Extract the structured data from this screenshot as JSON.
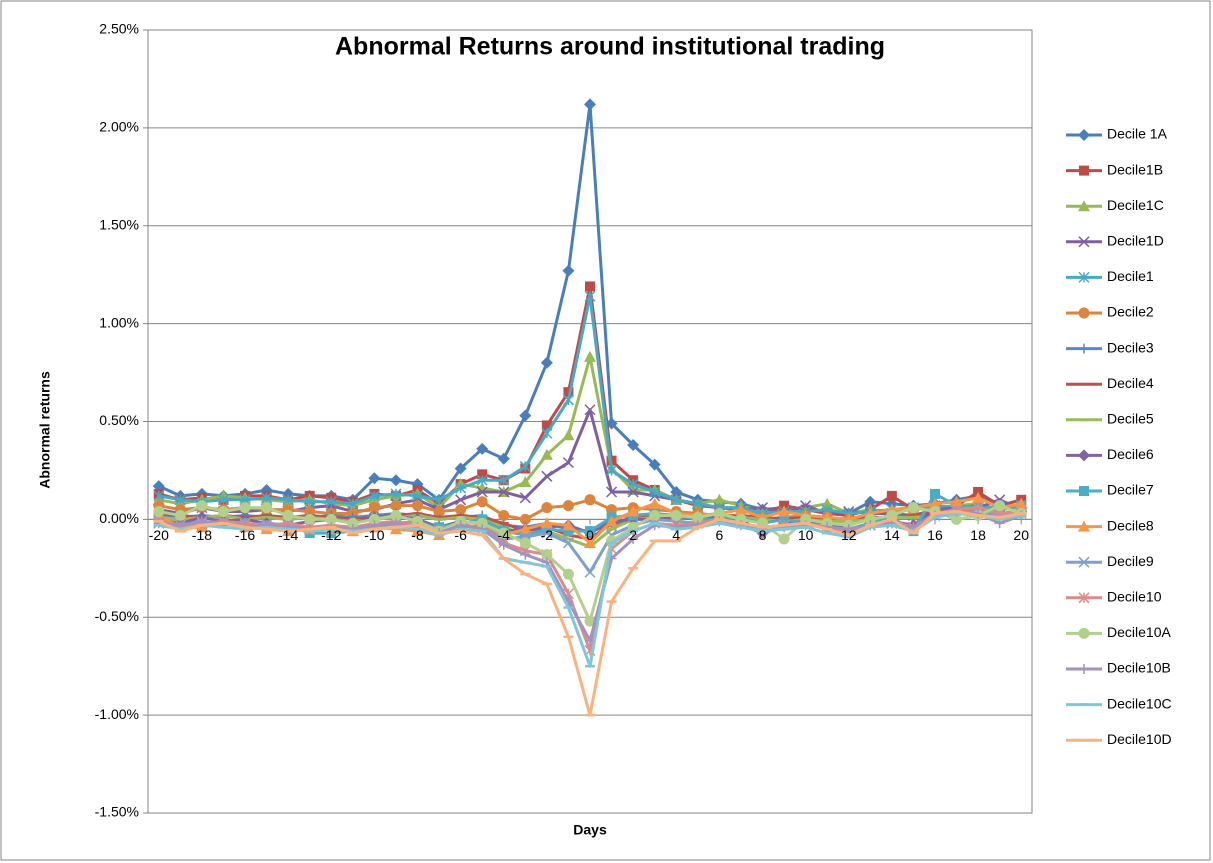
{
  "chart_data": {
    "type": "line",
    "title": "Abnormal Returns around institutional trading",
    "x_label": "Days",
    "y_label": "Abnormal returns",
    "x": [
      -20,
      -19,
      -18,
      -17,
      -16,
      -15,
      -14,
      -13,
      -12,
      -11,
      -10,
      -9,
      -8,
      -7,
      -6,
      -5,
      -4,
      -3,
      -2,
      -1,
      0,
      1,
      2,
      3,
      4,
      5,
      6,
      7,
      8,
      9,
      10,
      11,
      12,
      13,
      14,
      15,
      16,
      17,
      18,
      19,
      20
    ],
    "xlim": [
      -20.5,
      20.5
    ],
    "xticks": [
      -20,
      -18,
      -16,
      -14,
      -12,
      -10,
      -8,
      -6,
      -4,
      -2,
      0,
      2,
      4,
      6,
      8,
      10,
      12,
      14,
      16,
      18,
      20
    ],
    "ylim": [
      -1.5,
      2.5
    ],
    "yticks": [
      {
        "value": -1.5,
        "label": "-1.50%"
      },
      {
        "value": -1.0,
        "label": "-1.00%"
      },
      {
        "value": -0.5,
        "label": "-0.50%"
      },
      {
        "value": 0,
        "label": "0.00%"
      },
      {
        "value": 0.5,
        "label": "0.50%"
      },
      {
        "value": 1.0,
        "label": "1.00%"
      },
      {
        "value": 1.5,
        "label": "1.50%"
      },
      {
        "value": 2.0,
        "label": "2.00%"
      },
      {
        "value": 2.5,
        "label": "2.50%"
      }
    ],
    "grid": true,
    "legend": "right",
    "series": [
      {
        "name": "Decile 1A",
        "color": "#4A7EBB",
        "marker": "diamond",
        "values": [
          0.17,
          0.12,
          0.13,
          0.12,
          0.13,
          0.15,
          0.13,
          0.12,
          0.12,
          0.1,
          0.21,
          0.2,
          0.18,
          0.1,
          0.26,
          0.36,
          0.31,
          0.53,
          0.8,
          1.27,
          2.12,
          0.49,
          0.38,
          0.28,
          0.14,
          0.1,
          0.09,
          0.08,
          0.05,
          0.06,
          0.05,
          0.04,
          0.03,
          0.09,
          0.08,
          0.07,
          0.08,
          0.1,
          0.12,
          0.08,
          0.06
        ]
      },
      {
        "name": "Decile1B",
        "color": "#BE4B48",
        "marker": "square",
        "values": [
          0.13,
          0.1,
          0.11,
          0.1,
          0.12,
          0.12,
          0.1,
          0.12,
          0.11,
          0.09,
          0.13,
          0.12,
          0.15,
          0.08,
          0.18,
          0.23,
          0.2,
          0.26,
          0.48,
          0.65,
          1.19,
          0.3,
          0.2,
          0.15,
          0.1,
          0.07,
          0.06,
          0.05,
          0.03,
          0.07,
          0.05,
          0.03,
          0.02,
          0.05,
          0.12,
          0.05,
          0.06,
          0.07,
          0.14,
          0.07,
          0.1
        ]
      },
      {
        "name": "Decile1C",
        "color": "#98B954",
        "marker": "triangle",
        "values": [
          0.1,
          0.08,
          0.1,
          0.12,
          0.11,
          0.1,
          0.09,
          0.1,
          0.08,
          0.07,
          0.1,
          0.12,
          0.13,
          0.06,
          0.18,
          0.16,
          0.14,
          0.19,
          0.33,
          0.43,
          0.83,
          0.26,
          0.15,
          0.15,
          0.1,
          0.08,
          0.1,
          0.07,
          0.04,
          0.04,
          0.06,
          0.08,
          0.03,
          0.05,
          0.04,
          0.05,
          0.06,
          0.07,
          0.08,
          0.05,
          0.06
        ]
      },
      {
        "name": "Decile1D",
        "color": "#7D60A0",
        "marker": "x",
        "values": [
          0.05,
          0.03,
          0.06,
          0.04,
          0.04,
          0.05,
          0.04,
          0.06,
          0.07,
          0.04,
          0.05,
          0.08,
          0.1,
          0.05,
          0.1,
          0.14,
          0.14,
          0.11,
          0.22,
          0.29,
          0.56,
          0.14,
          0.14,
          0.12,
          0.1,
          0.08,
          0.06,
          0.05,
          0.06,
          0.03,
          0.07,
          0.03,
          0.04,
          0.03,
          0.03,
          0.02,
          0.05,
          0.06,
          0.06,
          0.1,
          0.05
        ]
      },
      {
        "name": "Decile1",
        "color": "#46AAC5",
        "marker": "star",
        "values": [
          0.12,
          0.1,
          0.09,
          0.1,
          0.1,
          0.11,
          0.1,
          0.09,
          0.09,
          0.08,
          0.12,
          0.13,
          0.12,
          0.1,
          0.16,
          0.2,
          0.2,
          0.27,
          0.44,
          0.61,
          1.14,
          0.25,
          0.18,
          0.14,
          0.1,
          0.08,
          0.06,
          0.06,
          0.03,
          0.04,
          0.04,
          0.05,
          0.03,
          0.04,
          0.05,
          0.06,
          0.07,
          0.06,
          0.06,
          0.06,
          0.07
        ]
      },
      {
        "name": "Decile2",
        "color": "#DB843D",
        "marker": "circle",
        "values": [
          0.07,
          0.05,
          0.06,
          0.05,
          0.06,
          0.05,
          0.05,
          0.04,
          0.03,
          0.03,
          0.06,
          0.07,
          0.07,
          0.04,
          0.05,
          0.09,
          0.02,
          0.0,
          0.06,
          0.07,
          0.1,
          0.05,
          0.06,
          0.05,
          0.04,
          0.03,
          0.02,
          0.02,
          0.0,
          0.01,
          0.02,
          0.01,
          0.0,
          -0.01,
          0.01,
          0.02,
          0.03,
          0.04,
          0.05,
          0.03,
          0.04
        ]
      },
      {
        "name": "Decile3",
        "color": "#5B87C4",
        "marker": "plus",
        "values": [
          0.02,
          0.01,
          0.02,
          0.01,
          0.02,
          0.01,
          0.0,
          0.01,
          0.02,
          0.01,
          0.02,
          0.03,
          0.02,
          0.0,
          0.01,
          0.02,
          -0.03,
          -0.04,
          -0.02,
          -0.05,
          -0.06,
          -0.03,
          0.0,
          0.01,
          0.02,
          0.01,
          0.02,
          0.01,
          0.0,
          0.01,
          0.0,
          0.01,
          -0.01,
          0.0,
          0.02,
          0.01,
          0.03,
          0.04,
          0.03,
          0.02,
          0.03
        ]
      },
      {
        "name": "Decile4",
        "color": "#C0504D",
        "marker": "dash",
        "values": [
          0.03,
          0.02,
          0.01,
          0.02,
          0.01,
          0.02,
          0.01,
          0.02,
          0.01,
          0.0,
          0.01,
          0.02,
          0.03,
          0.01,
          0.02,
          0.01,
          -0.02,
          -0.06,
          -0.04,
          -0.08,
          -0.1,
          -0.02,
          0.01,
          0.02,
          0.01,
          0.02,
          0.01,
          0.02,
          0.01,
          0.0,
          0.01,
          0.0,
          0.0,
          0.01,
          0.01,
          0.02,
          0.04,
          0.03,
          0.04,
          0.03,
          0.04
        ]
      },
      {
        "name": "Decile5",
        "color": "#9BBB59",
        "marker": "dash",
        "values": [
          0.01,
          0.0,
          0.01,
          0.02,
          0.0,
          0.01,
          0.0,
          0.01,
          0.0,
          -0.01,
          0.0,
          0.01,
          0.02,
          0.0,
          0.01,
          0.0,
          -0.04,
          -0.08,
          -0.06,
          -0.1,
          -0.14,
          -0.05,
          0.0,
          0.01,
          0.0,
          0.01,
          0.0,
          0.01,
          0.0,
          -0.01,
          0.0,
          -0.01,
          -0.01,
          0.0,
          0.01,
          0.01,
          0.02,
          0.03,
          0.03,
          0.02,
          0.02
        ]
      },
      {
        "name": "Decile6",
        "color": "#8064A2",
        "marker": "diamond",
        "values": [
          0.0,
          -0.02,
          0.01,
          -0.01,
          0.0,
          -0.02,
          -0.03,
          -0.01,
          0.0,
          -0.02,
          0.01,
          0.02,
          0.0,
          -0.04,
          -0.01,
          -0.02,
          -0.06,
          -0.05,
          -0.04,
          -0.03,
          -0.07,
          -0.01,
          0.0,
          0.0,
          0.01,
          0.0,
          0.01,
          0.0,
          -0.07,
          -0.02,
          -0.01,
          -0.02,
          -0.05,
          -0.02,
          -0.01,
          -0.03,
          0.05,
          0.06,
          0.07,
          0.03,
          0.04
        ]
      },
      {
        "name": "Decile7",
        "color": "#4BACC6",
        "marker": "square",
        "values": [
          0.0,
          -0.04,
          -0.03,
          -0.02,
          -0.02,
          -0.04,
          -0.03,
          -0.07,
          -0.07,
          -0.06,
          -0.04,
          -0.02,
          -0.04,
          -0.04,
          -0.02,
          0.0,
          -0.06,
          -0.08,
          -0.05,
          -0.06,
          -0.06,
          0.01,
          0.02,
          0.03,
          0.02,
          0.0,
          0.0,
          0.01,
          -0.02,
          0.0,
          -0.02,
          -0.04,
          -0.05,
          -0.02,
          0.01,
          -0.06,
          0.13,
          0.07,
          0.06,
          0.05,
          0.07
        ]
      },
      {
        "name": "Decile8",
        "color": "#F79646",
        "marker": "triangle",
        "values": [
          0.02,
          -0.04,
          -0.04,
          -0.02,
          -0.04,
          -0.05,
          -0.06,
          -0.05,
          -0.05,
          -0.06,
          -0.04,
          -0.05,
          -0.06,
          -0.08,
          -0.04,
          -0.03,
          -0.08,
          -0.05,
          -0.02,
          -0.03,
          -0.12,
          -0.01,
          0.04,
          0.08,
          0.03,
          0.02,
          0.03,
          0.05,
          0.01,
          0.04,
          0.02,
          0.01,
          0.0,
          0.03,
          0.05,
          0.06,
          0.08,
          0.09,
          0.11,
          0.06,
          0.08
        ]
      },
      {
        "name": "Decile9",
        "color": "#7E9FD0",
        "marker": "x",
        "values": [
          -0.02,
          -0.03,
          -0.01,
          -0.02,
          -0.03,
          -0.02,
          -0.03,
          -0.04,
          -0.05,
          -0.04,
          -0.03,
          -0.02,
          -0.01,
          -0.05,
          -0.03,
          -0.04,
          -0.1,
          -0.09,
          -0.07,
          -0.12,
          -0.27,
          -0.08,
          -0.03,
          0.0,
          -0.01,
          -0.02,
          0.0,
          -0.02,
          -0.05,
          -0.03,
          -0.02,
          -0.05,
          -0.06,
          -0.03,
          -0.02,
          -0.04,
          0.02,
          0.03,
          0.04,
          0.02,
          0.03
        ]
      },
      {
        "name": "Decile10",
        "color": "#D98C8A",
        "marker": "star",
        "values": [
          -0.01,
          -0.03,
          -0.02,
          -0.01,
          -0.02,
          -0.03,
          -0.02,
          -0.04,
          -0.03,
          -0.04,
          -0.02,
          -0.01,
          -0.03,
          -0.06,
          -0.02,
          -0.05,
          -0.12,
          -0.16,
          -0.18,
          -0.38,
          -0.67,
          -0.15,
          -0.06,
          -0.02,
          -0.03,
          -0.02,
          0.0,
          -0.02,
          -0.04,
          -0.03,
          -0.02,
          -0.04,
          -0.06,
          -0.03,
          -0.01,
          -0.04,
          0.03,
          0.05,
          0.06,
          0.03,
          0.04
        ]
      },
      {
        "name": "Decile10A",
        "color": "#B3CF8C",
        "marker": "circle",
        "values": [
          0.04,
          0.02,
          0.07,
          0.04,
          0.06,
          0.06,
          0.02,
          0.0,
          0.0,
          -0.02,
          0.0,
          0.02,
          -0.01,
          -0.06,
          -0.01,
          -0.02,
          -0.07,
          -0.12,
          -0.18,
          -0.28,
          -0.52,
          -0.11,
          -0.04,
          0.02,
          0.02,
          0.01,
          0.03,
          0.0,
          -0.02,
          -0.1,
          0.0,
          -0.02,
          -0.03,
          0.0,
          0.02,
          0.06,
          0.04,
          0.0,
          0.02,
          0.07,
          0.03
        ]
      },
      {
        "name": "Decile10B",
        "color": "#A391BE",
        "marker": "plus",
        "values": [
          -0.02,
          -0.03,
          -0.01,
          -0.02,
          -0.04,
          -0.03,
          -0.04,
          -0.05,
          -0.04,
          -0.05,
          -0.03,
          -0.02,
          -0.04,
          -0.07,
          -0.03,
          -0.05,
          -0.13,
          -0.18,
          -0.22,
          -0.42,
          -0.62,
          -0.2,
          -0.1,
          -0.03,
          -0.04,
          -0.03,
          -0.01,
          -0.03,
          -0.07,
          -0.04,
          -0.03,
          -0.04,
          -0.05,
          -0.03,
          -0.02,
          -0.04,
          0.02,
          0.04,
          0.03,
          -0.02,
          0.02
        ]
      },
      {
        "name": "Decile10C",
        "color": "#7FC6DB",
        "marker": "dash",
        "values": [
          -0.03,
          -0.05,
          -0.03,
          -0.04,
          -0.05,
          -0.04,
          -0.05,
          -0.06,
          -0.05,
          -0.06,
          -0.05,
          -0.04,
          -0.05,
          -0.08,
          -0.05,
          -0.06,
          -0.2,
          -0.22,
          -0.24,
          -0.45,
          -0.75,
          -0.12,
          -0.06,
          -0.02,
          -0.05,
          -0.04,
          -0.02,
          -0.04,
          -0.06,
          -0.05,
          -0.04,
          -0.07,
          -0.09,
          -0.04,
          -0.03,
          -0.06,
          0.01,
          0.03,
          0.02,
          0.0,
          0.02
        ]
      },
      {
        "name": "Decile10D",
        "color": "#FAB27E",
        "marker": "dash",
        "values": [
          -0.01,
          -0.06,
          -0.03,
          -0.02,
          -0.04,
          -0.05,
          -0.06,
          -0.05,
          -0.04,
          -0.07,
          -0.05,
          -0.04,
          -0.03,
          -0.07,
          -0.06,
          -0.08,
          -0.2,
          -0.28,
          -0.33,
          -0.6,
          -1.0,
          -0.42,
          -0.25,
          -0.11,
          -0.11,
          -0.04,
          0.0,
          -0.02,
          -0.04,
          -0.03,
          -0.02,
          -0.05,
          -0.08,
          -0.03,
          0.0,
          -0.07,
          0.03,
          0.04,
          0.02,
          0.01,
          0.03
        ]
      }
    ]
  }
}
